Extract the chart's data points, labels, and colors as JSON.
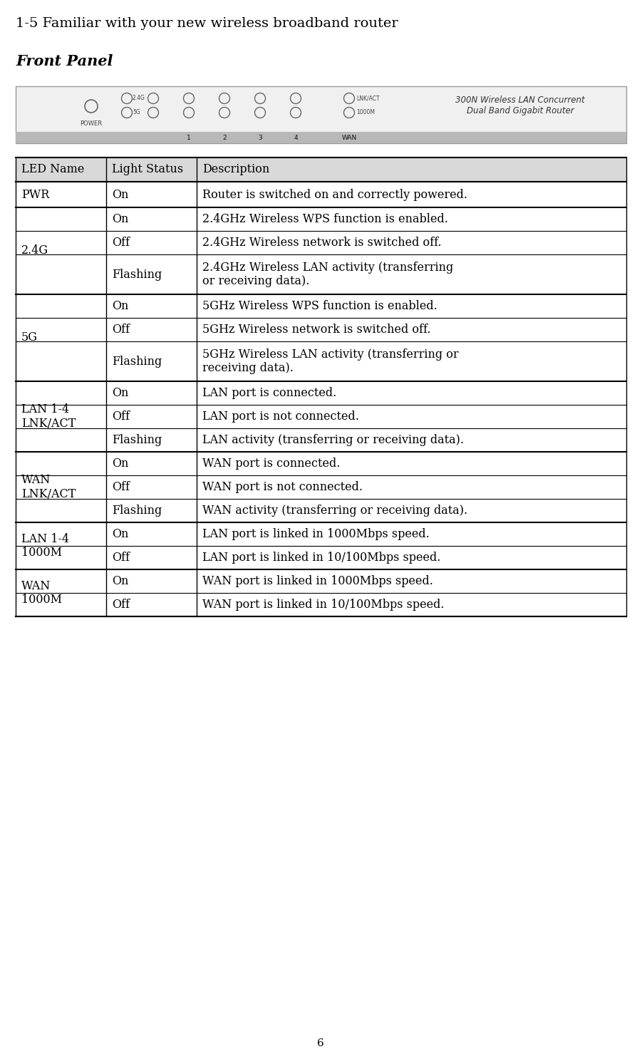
{
  "title": "1-5 Familiar with your new wireless broadband router",
  "subtitle": "Front Panel",
  "page_number": "6",
  "router_label": "300N Wireless LAN Concurrent\nDual Band Gigabit Router",
  "router_port_labels": [
    "1",
    "2",
    "3",
    "4",
    "WAN"
  ],
  "table_header": [
    "LED Name",
    "Light Status",
    "Description"
  ],
  "table_rows": [
    [
      "PWR",
      "On",
      "Router is switched on and correctly powered."
    ],
    [
      "2.4G",
      "On",
      "2.4GHz Wireless WPS function is enabled."
    ],
    [
      "2.4G",
      "Off",
      "2.4GHz Wireless network is switched off."
    ],
    [
      "2.4G",
      "Flashing",
      "2.4GHz Wireless LAN activity (transferring\nor receiving data)."
    ],
    [
      "5G",
      "On",
      "5GHz Wireless WPS function is enabled."
    ],
    [
      "5G",
      "Off",
      "5GHz Wireless network is switched off."
    ],
    [
      "5G",
      "Flashing",
      "5GHz Wireless LAN activity (transferring or\nreceiving data)."
    ],
    [
      "LAN 1-4\nLNK/ACT",
      "On",
      "LAN port is connected."
    ],
    [
      "LAN 1-4\nLNK/ACT",
      "Off",
      "LAN port is not connected."
    ],
    [
      "LAN 1-4\nLNK/ACT",
      "Flashing",
      "LAN activity (transferring or receiving data)."
    ],
    [
      "WAN\nLNK/ACT",
      "On",
      "WAN port is connected."
    ],
    [
      "WAN\nLNK/ACT",
      "Off",
      "WAN port is not connected."
    ],
    [
      "WAN\nLNK/ACT",
      "Flashing",
      "WAN activity (transferring or receiving data)."
    ],
    [
      "LAN 1-4\n1000M",
      "On",
      "LAN port is linked in 1000Mbps speed."
    ],
    [
      "LAN 1-4\n1000M",
      "Off",
      "LAN port is linked in 10/100Mbps speed."
    ],
    [
      "WAN\n1000M",
      "On",
      "WAN port is linked in 1000Mbps speed."
    ],
    [
      "WAN\n1000M",
      "Off",
      "WAN port is linked in 10/100Mbps speed."
    ]
  ],
  "merge_groups_order": [
    "PWR",
    "2.4G",
    "5G",
    "LAN 1-4\nLNK/ACT",
    "WAN\nLNK/ACT",
    "LAN 1-4\n1000M",
    "WAN\n1000M"
  ],
  "merge_groups": {
    "PWR": [
      0
    ],
    "2.4G": [
      1,
      2,
      3
    ],
    "5G": [
      4,
      5,
      6
    ],
    "LAN 1-4\nLNK/ACT": [
      7,
      8,
      9
    ],
    "WAN\nLNK/ACT": [
      10,
      11,
      12
    ],
    "LAN 1-4\n1000M": [
      13,
      14
    ],
    "WAN\n1000M": [
      15,
      16
    ]
  },
  "major_section_rows": [
    0,
    1,
    4,
    7,
    10,
    13,
    15,
    17
  ],
  "bg_color": "#ffffff",
  "header_bg": "#d9d9d9",
  "border_color": "#000000",
  "text_color": "#000000",
  "table_font_size": 11.5,
  "title_font_size": 14,
  "subtitle_font_size": 15
}
